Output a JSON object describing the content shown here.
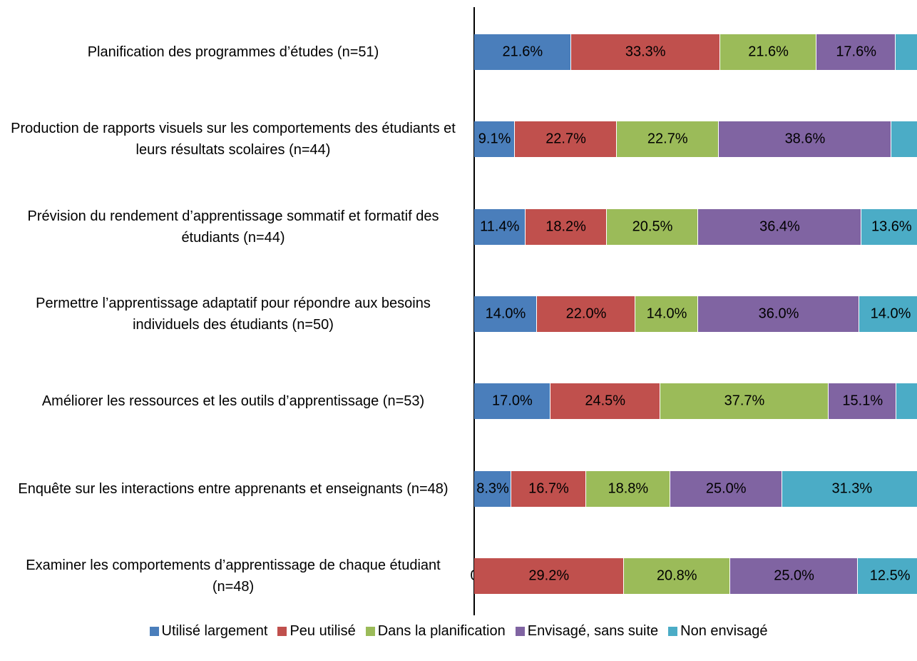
{
  "chart_data": {
    "type": "bar",
    "orientation": "horizontal",
    "stacked": "percent",
    "categories": [
      "Planification des programmes d’études (n=51)",
      "Production de rapports visuels sur les comportements des étudiants et leurs résultats scolaires (n=44)",
      "Prévision du rendement d’apprentissage sommatif et formatif des étudiants (n=44)",
      "Permettre l’apprentissage adaptatif pour répondre aux besoins individuels des étudiants (n=50)",
      "Améliorer les ressources et les outils d’apprentissage (n=53)",
      "Enquête sur les interactions entre apprenants et enseignants (n=48)",
      "Examiner les comportements d’apprentissage de chaque étudiant (n=48)"
    ],
    "series": [
      {
        "name": "Utilisé largement",
        "color": "#4a7ebb",
        "values": [
          21.6,
          9.1,
          11.4,
          14.0,
          17.0,
          8.3,
          0
        ],
        "value_labels": [
          "21.6%",
          "9.1%",
          "11.4%",
          "14.0%",
          "17.0%",
          "8.3%",
          "0"
        ]
      },
      {
        "name": "Peu utilisé",
        "color": "#c0504d",
        "values": [
          33.3,
          22.7,
          18.2,
          22.0,
          24.5,
          16.7,
          29.2
        ],
        "value_labels": [
          "33.3%",
          "22.7%",
          "18.2%",
          "22.0%",
          "24.5%",
          "16.7%",
          "29.2%"
        ]
      },
      {
        "name": "Dans la planification",
        "color": "#9bbb59",
        "values": [
          21.6,
          22.7,
          20.5,
          14.0,
          37.7,
          18.8,
          20.8
        ],
        "value_labels": [
          "21.6%",
          "22.7%",
          "20.5%",
          "14.0%",
          "37.7%",
          "18.8%",
          "20.8%"
        ]
      },
      {
        "name": "Envisagé, sans suite",
        "color": "#8064a2",
        "values": [
          17.6,
          38.6,
          36.4,
          36.0,
          15.1,
          25.0,
          25.0
        ],
        "value_labels": [
          "17.6%",
          "38.6%",
          "36.4%",
          "36.0%",
          "15.1%",
          "25.0%",
          "25.0%"
        ]
      },
      {
        "name": "Non envisagé",
        "color": "#4bacc6",
        "values": [
          5.9,
          6.8,
          13.6,
          14.0,
          5.7,
          31.3,
          12.5
        ],
        "value_labels": [
          null,
          null,
          "13.6%",
          "14.0%",
          null,
          "31.3%",
          "12.5%"
        ]
      }
    ],
    "legend": "bottom"
  }
}
